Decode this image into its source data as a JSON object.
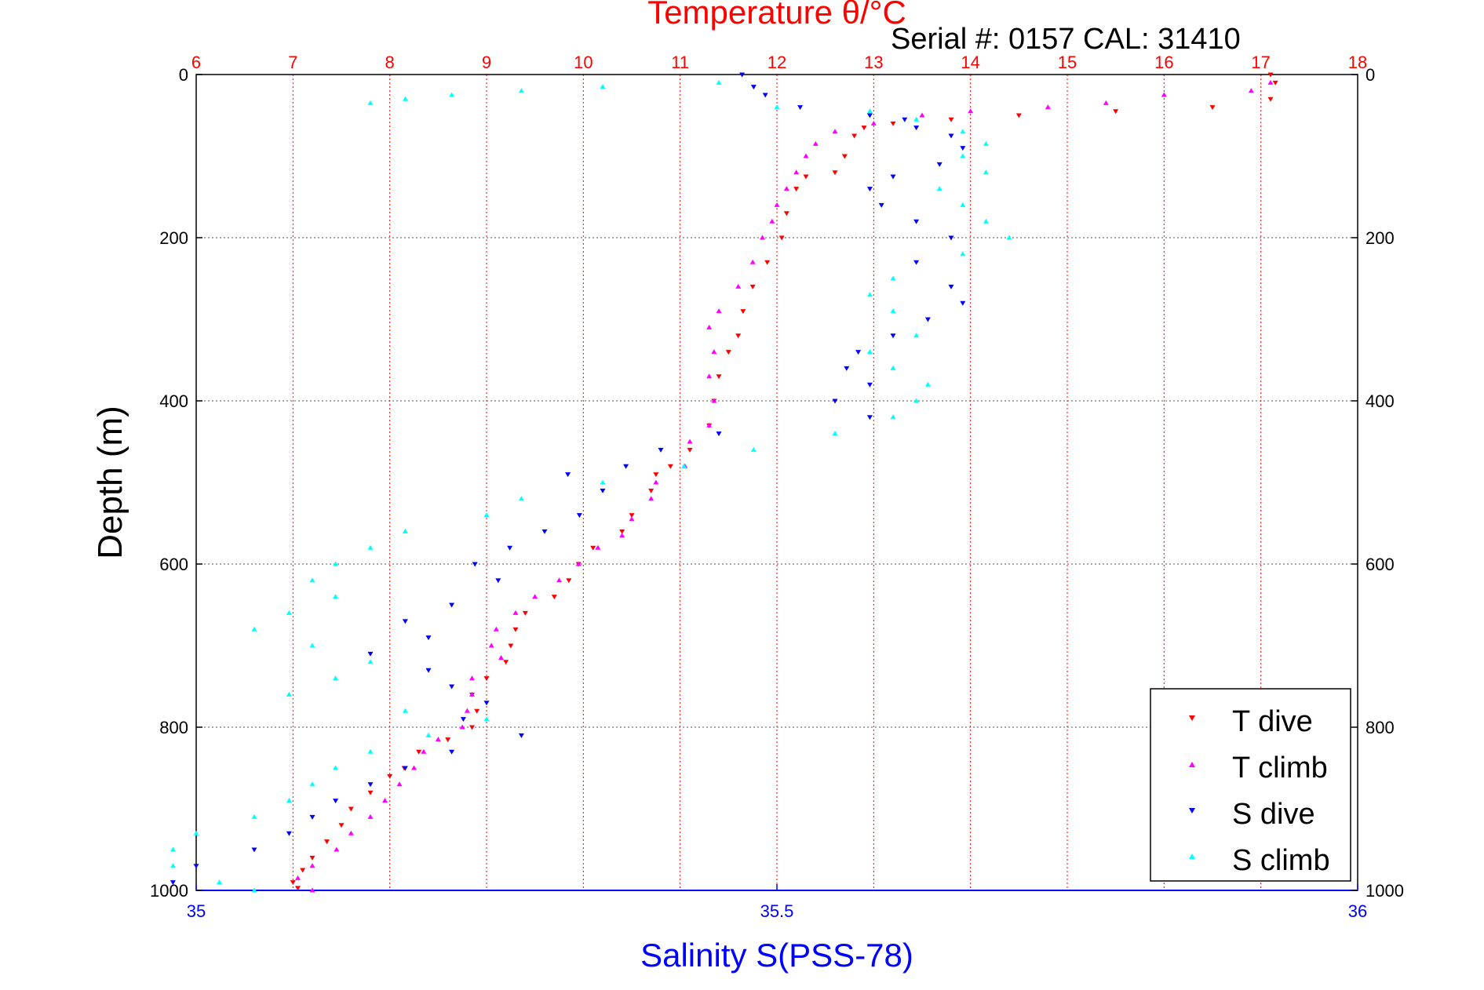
{
  "header": {
    "serial_text": "Serial #: 0157  CAL: 31410"
  },
  "colors": {
    "t_dive": "#ff0000",
    "t_climb": "#ff00ff",
    "s_dive": "#0000ff",
    "s_climb": "#00ffff",
    "temp_axis": "#ff0000",
    "sal_axis": "#0000ff"
  },
  "chart_data": {
    "type": "scatter",
    "title": "Temperature θ/°C",
    "xlabel": "Salinity S(PSS-78)",
    "ylabel": "Depth (m)",
    "temperature_axis": {
      "label": "Temperature θ/°C",
      "range": [
        6,
        18
      ],
      "ticks": [
        "6",
        "7",
        "8",
        "9",
        "10",
        "11",
        "12",
        "13",
        "14",
        "15",
        "16",
        "17",
        "18"
      ]
    },
    "salinity_axis": {
      "label": "Salinity S(PSS-78)",
      "range": [
        35,
        36
      ],
      "ticks": [
        "35",
        "35.5",
        "36"
      ]
    },
    "depth_axis": {
      "label": "Depth (m)",
      "range": [
        0,
        1000
      ],
      "reversed": true,
      "ticks": [
        "0",
        "200",
        "400",
        "600",
        "800",
        "1000"
      ]
    },
    "grid": true,
    "legend_position": "bottom-right",
    "legend": [
      "T dive",
      "T climb",
      "S dive",
      "S climb"
    ],
    "series": [
      {
        "name": "T dive",
        "axis": "temperature",
        "marker": "triangle-down",
        "points": [
          [
            17.1,
            0
          ],
          [
            17.15,
            10
          ],
          [
            17.1,
            30
          ],
          [
            16.5,
            40
          ],
          [
            15.5,
            45
          ],
          [
            14.5,
            50
          ],
          [
            13.8,
            55
          ],
          [
            13.2,
            60
          ],
          [
            12.9,
            65
          ],
          [
            12.8,
            75
          ],
          [
            12.7,
            100
          ],
          [
            12.6,
            120
          ],
          [
            12.3,
            125
          ],
          [
            12.2,
            140
          ],
          [
            12.1,
            170
          ],
          [
            12.05,
            200
          ],
          [
            11.9,
            230
          ],
          [
            11.75,
            260
          ],
          [
            11.65,
            290
          ],
          [
            11.6,
            320
          ],
          [
            11.5,
            340
          ],
          [
            11.4,
            370
          ],
          [
            11.35,
            400
          ],
          [
            11.3,
            430
          ],
          [
            11.1,
            460
          ],
          [
            10.9,
            480
          ],
          [
            10.75,
            490
          ],
          [
            10.7,
            510
          ],
          [
            10.5,
            540
          ],
          [
            10.4,
            560
          ],
          [
            10.1,
            580
          ],
          [
            9.95,
            600
          ],
          [
            9.85,
            620
          ],
          [
            9.7,
            640
          ],
          [
            9.4,
            660
          ],
          [
            9.3,
            680
          ],
          [
            9.25,
            700
          ],
          [
            9.2,
            720
          ],
          [
            9.0,
            740
          ],
          [
            8.85,
            760
          ],
          [
            8.9,
            780
          ],
          [
            8.85,
            800
          ],
          [
            8.6,
            815
          ],
          [
            8.3,
            830
          ],
          [
            8.15,
            850
          ],
          [
            8.0,
            860
          ],
          [
            7.8,
            880
          ],
          [
            7.6,
            900
          ],
          [
            7.5,
            920
          ],
          [
            7.35,
            940
          ],
          [
            7.2,
            960
          ],
          [
            7.1,
            975
          ],
          [
            7.0,
            990
          ],
          [
            7.05,
            997
          ]
        ]
      },
      {
        "name": "T climb",
        "axis": "temperature",
        "marker": "triangle-up",
        "points": [
          [
            17.1,
            10
          ],
          [
            16.9,
            20
          ],
          [
            16.0,
            25
          ],
          [
            15.4,
            35
          ],
          [
            14.8,
            40
          ],
          [
            14.0,
            45
          ],
          [
            13.5,
            50
          ],
          [
            13.0,
            60
          ],
          [
            12.6,
            70
          ],
          [
            12.4,
            85
          ],
          [
            12.3,
            100
          ],
          [
            12.2,
            120
          ],
          [
            12.1,
            140
          ],
          [
            12.0,
            160
          ],
          [
            11.95,
            180
          ],
          [
            11.85,
            200
          ],
          [
            11.75,
            230
          ],
          [
            11.6,
            260
          ],
          [
            11.4,
            290
          ],
          [
            11.3,
            310
          ],
          [
            11.35,
            340
          ],
          [
            11.3,
            370
          ],
          [
            11.35,
            400
          ],
          [
            11.3,
            430
          ],
          [
            11.1,
            450
          ],
          [
            11.05,
            480
          ],
          [
            10.75,
            500
          ],
          [
            10.7,
            520
          ],
          [
            10.5,
            545
          ],
          [
            10.4,
            565
          ],
          [
            10.15,
            580
          ],
          [
            9.95,
            600
          ],
          [
            9.75,
            620
          ],
          [
            9.5,
            640
          ],
          [
            9.3,
            660
          ],
          [
            9.1,
            680
          ],
          [
            9.05,
            700
          ],
          [
            9.15,
            715
          ],
          [
            8.85,
            740
          ],
          [
            8.85,
            760
          ],
          [
            8.8,
            780
          ],
          [
            8.75,
            800
          ],
          [
            8.5,
            815
          ],
          [
            8.35,
            830
          ],
          [
            8.25,
            850
          ],
          [
            8.1,
            870
          ],
          [
            7.95,
            890
          ],
          [
            7.8,
            910
          ],
          [
            7.6,
            930
          ],
          [
            7.45,
            950
          ],
          [
            7.2,
            970
          ],
          [
            7.05,
            985
          ],
          [
            7.2,
            1000
          ]
        ]
      },
      {
        "name": "S dive",
        "axis": "salinity",
        "marker": "triangle-down",
        "points": [
          [
            35.47,
            0
          ],
          [
            35.48,
            15
          ],
          [
            35.49,
            25
          ],
          [
            35.52,
            40
          ],
          [
            35.58,
            50
          ],
          [
            35.61,
            55
          ],
          [
            35.62,
            65
          ],
          [
            35.65,
            75
          ],
          [
            35.66,
            90
          ],
          [
            35.64,
            110
          ],
          [
            35.6,
            125
          ],
          [
            35.58,
            140
          ],
          [
            35.59,
            160
          ],
          [
            35.62,
            180
          ],
          [
            35.65,
            200
          ],
          [
            35.62,
            230
          ],
          [
            35.65,
            260
          ],
          [
            35.66,
            280
          ],
          [
            35.63,
            300
          ],
          [
            35.6,
            320
          ],
          [
            35.57,
            340
          ],
          [
            35.56,
            360
          ],
          [
            35.58,
            380
          ],
          [
            35.55,
            400
          ],
          [
            35.58,
            420
          ],
          [
            35.45,
            440
          ],
          [
            35.4,
            460
          ],
          [
            35.37,
            480
          ],
          [
            35.32,
            490
          ],
          [
            35.35,
            510
          ],
          [
            35.33,
            540
          ],
          [
            35.3,
            560
          ],
          [
            35.27,
            580
          ],
          [
            35.24,
            600
          ],
          [
            35.26,
            620
          ],
          [
            35.22,
            650
          ],
          [
            35.18,
            670
          ],
          [
            35.2,
            690
          ],
          [
            35.15,
            710
          ],
          [
            35.2,
            730
          ],
          [
            35.22,
            750
          ],
          [
            35.25,
            770
          ],
          [
            35.23,
            790
          ],
          [
            35.28,
            810
          ],
          [
            35.22,
            830
          ],
          [
            35.18,
            850
          ],
          [
            35.15,
            870
          ],
          [
            35.12,
            890
          ],
          [
            35.1,
            910
          ],
          [
            35.08,
            930
          ],
          [
            35.05,
            950
          ],
          [
            35.0,
            970
          ],
          [
            34.98,
            990
          ]
        ]
      },
      {
        "name": "S climb",
        "axis": "salinity",
        "marker": "triangle-up",
        "points": [
          [
            35.45,
            10
          ],
          [
            35.35,
            15
          ],
          [
            35.28,
            20
          ],
          [
            35.22,
            25
          ],
          [
            35.18,
            30
          ],
          [
            35.15,
            35
          ],
          [
            35.5,
            40
          ],
          [
            35.58,
            45
          ],
          [
            35.62,
            55
          ],
          [
            35.66,
            70
          ],
          [
            35.68,
            85
          ],
          [
            35.66,
            100
          ],
          [
            35.68,
            120
          ],
          [
            35.64,
            140
          ],
          [
            35.66,
            160
          ],
          [
            35.68,
            180
          ],
          [
            35.7,
            200
          ],
          [
            35.66,
            220
          ],
          [
            35.6,
            250
          ],
          [
            35.58,
            270
          ],
          [
            35.6,
            290
          ],
          [
            35.62,
            320
          ],
          [
            35.58,
            340
          ],
          [
            35.6,
            360
          ],
          [
            35.63,
            380
          ],
          [
            35.62,
            400
          ],
          [
            35.6,
            420
          ],
          [
            35.55,
            440
          ],
          [
            35.48,
            460
          ],
          [
            35.42,
            480
          ],
          [
            35.35,
            500
          ],
          [
            35.28,
            520
          ],
          [
            35.25,
            540
          ],
          [
            35.18,
            560
          ],
          [
            35.15,
            580
          ],
          [
            35.12,
            600
          ],
          [
            35.1,
            620
          ],
          [
            35.12,
            640
          ],
          [
            35.08,
            660
          ],
          [
            35.05,
            680
          ],
          [
            35.1,
            700
          ],
          [
            35.15,
            720
          ],
          [
            35.12,
            740
          ],
          [
            35.08,
            760
          ],
          [
            35.18,
            780
          ],
          [
            35.25,
            790
          ],
          [
            35.2,
            810
          ],
          [
            35.15,
            830
          ],
          [
            35.12,
            850
          ],
          [
            35.1,
            870
          ],
          [
            35.08,
            890
          ],
          [
            35.05,
            910
          ],
          [
            35.0,
            930
          ],
          [
            34.98,
            950
          ],
          [
            34.98,
            970
          ],
          [
            35.02,
            990
          ],
          [
            35.05,
            1000
          ]
        ]
      }
    ]
  }
}
